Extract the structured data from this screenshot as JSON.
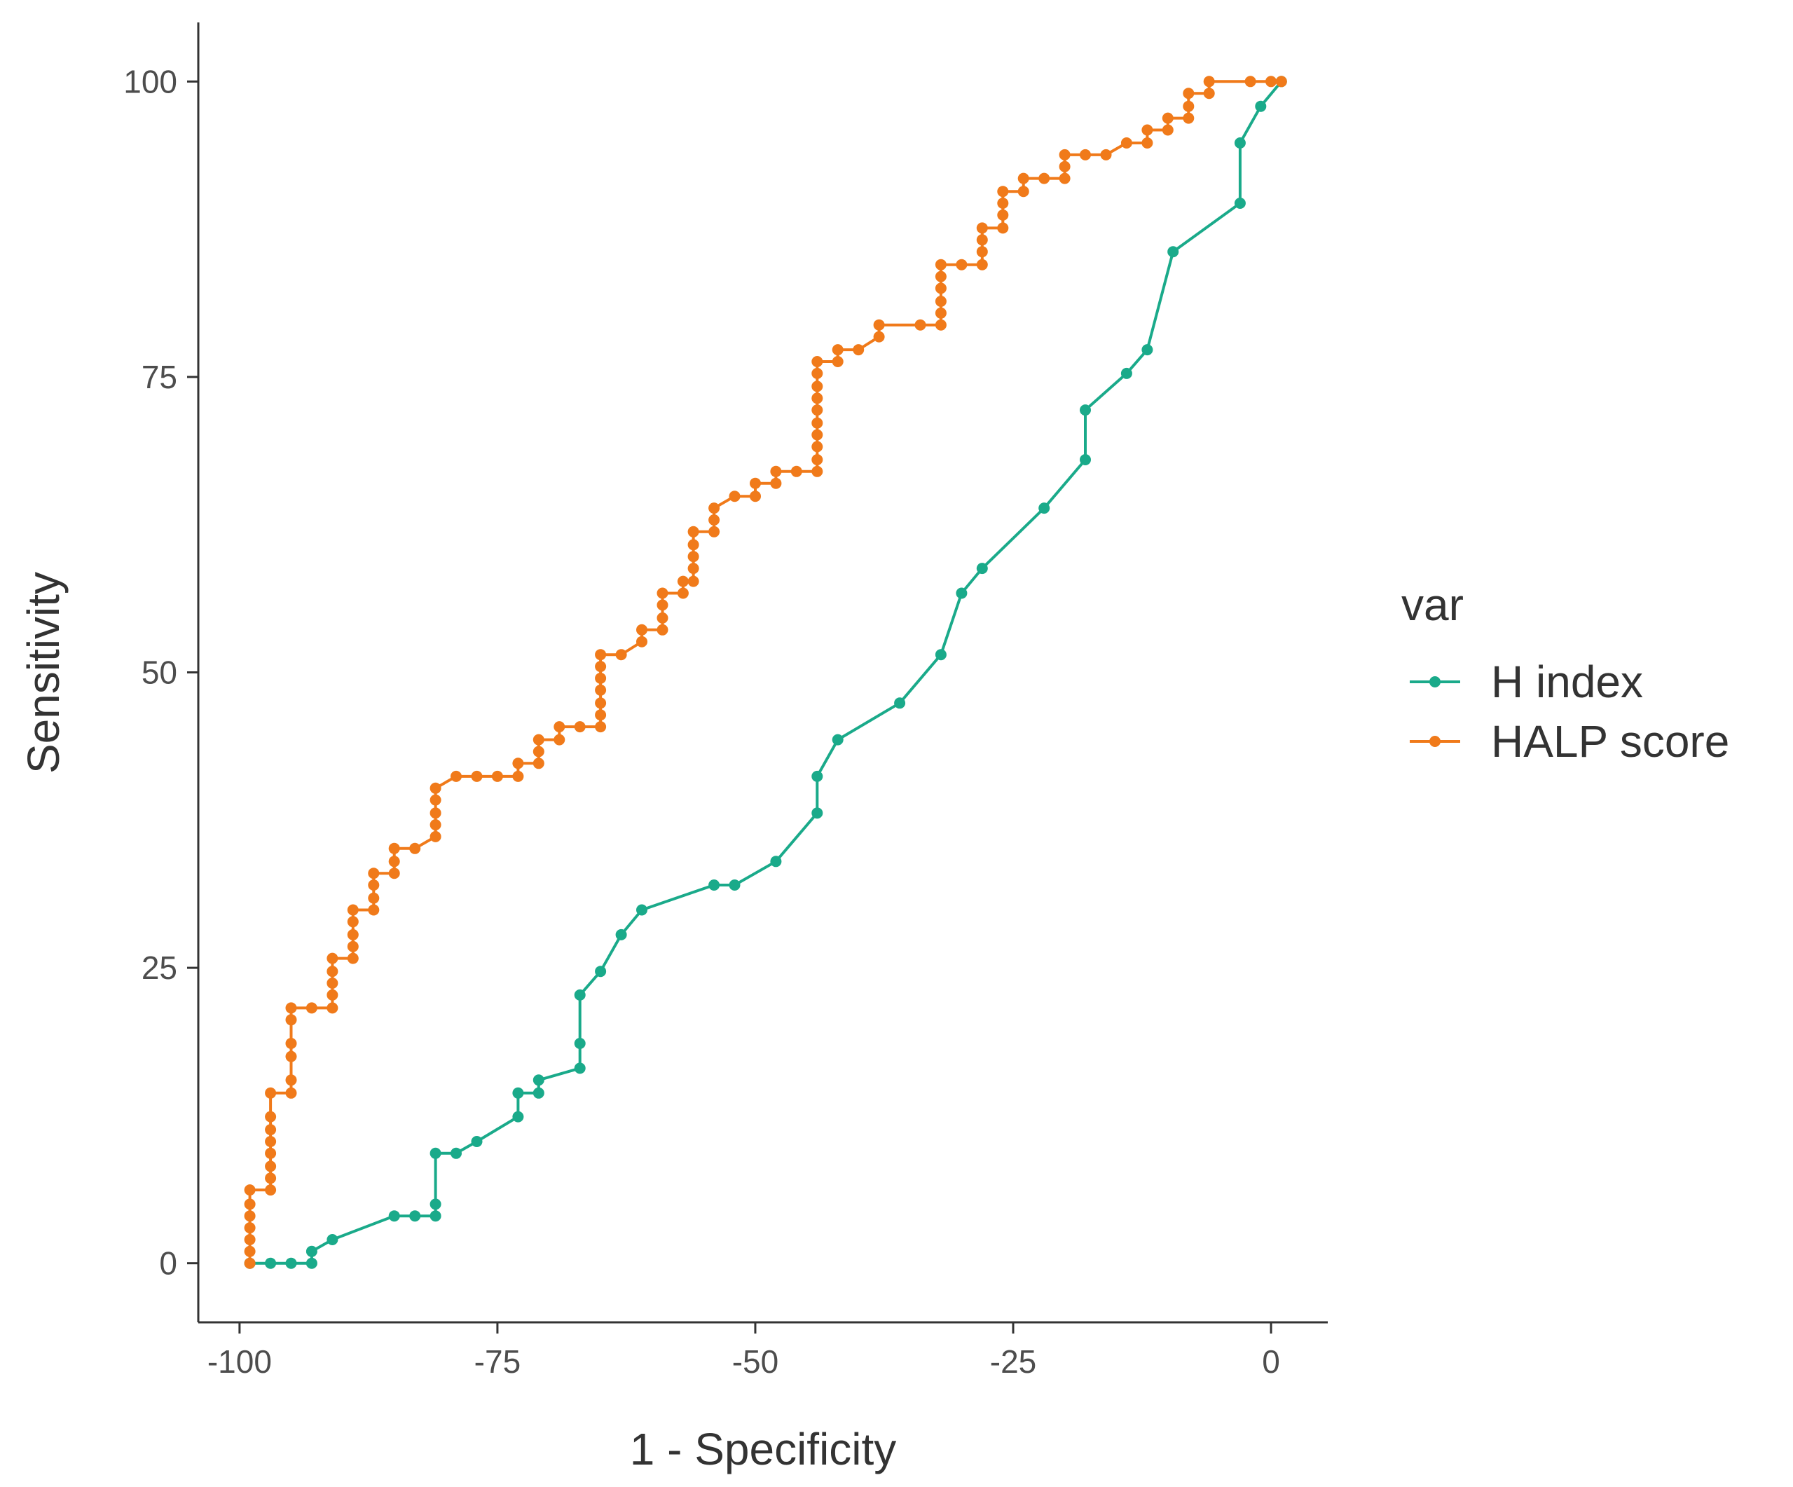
{
  "chart_data": {
    "type": "line",
    "title": "",
    "xlabel": "1 - Specificity",
    "ylabel": "Sensitivity",
    "xlim": [
      -104,
      5.5
    ],
    "ylim": [
      -5,
      105
    ],
    "x_ticks": [
      -100,
      -75,
      -50,
      -25,
      0
    ],
    "y_ticks": [
      0,
      25,
      50,
      75,
      100
    ],
    "x_tick_labels": [
      "-100",
      "-75",
      "-50",
      "-25",
      "0"
    ],
    "y_tick_labels": [
      "0",
      "25",
      "50",
      "75",
      "100"
    ],
    "grid": false,
    "legend": {
      "title": "var",
      "position": "right"
    },
    "series": [
      {
        "name": "H index",
        "color": "#1aaa8a",
        "points": [
          [
            -99,
            0
          ],
          [
            -97,
            0
          ],
          [
            -95,
            0
          ],
          [
            -93,
            0
          ],
          [
            -93,
            1
          ],
          [
            -91,
            2
          ],
          [
            -85,
            4
          ],
          [
            -83,
            4
          ],
          [
            -81,
            4
          ],
          [
            -81,
            5
          ],
          [
            -81,
            9.3
          ],
          [
            -79,
            9.3
          ],
          [
            -77,
            10.3
          ],
          [
            -73,
            12.4
          ],
          [
            -73,
            14.4
          ],
          [
            -71,
            14.4
          ],
          [
            -71,
            15.5
          ],
          [
            -67,
            16.5
          ],
          [
            -67,
            18.6
          ],
          [
            -67,
            22.7
          ],
          [
            -65,
            24.7
          ],
          [
            -63,
            27.8
          ],
          [
            -61,
            29.9
          ],
          [
            -54,
            32
          ],
          [
            -52,
            32
          ],
          [
            -48,
            34
          ],
          [
            -44,
            38.1
          ],
          [
            -44,
            41.2
          ],
          [
            -42,
            44.3
          ],
          [
            -36,
            47.4
          ],
          [
            -32,
            51.5
          ],
          [
            -30,
            56.7
          ],
          [
            -28,
            58.8
          ],
          [
            -22,
            63.9
          ],
          [
            -18,
            68
          ],
          [
            -18,
            72.2
          ],
          [
            -14,
            75.3
          ],
          [
            -12,
            77.3
          ],
          [
            -9.5,
            85.6
          ],
          [
            -3,
            89.7
          ],
          [
            -3,
            94.8
          ],
          [
            -1,
            97.9
          ],
          [
            1,
            100
          ]
        ]
      },
      {
        "name": "HALP score",
        "color": "#f07a1a",
        "points": [
          [
            -99,
            0
          ],
          [
            -99,
            1
          ],
          [
            -99,
            2
          ],
          [
            -99,
            3
          ],
          [
            -99,
            4
          ],
          [
            -99,
            5
          ],
          [
            -99,
            6.2
          ],
          [
            -97,
            6.2
          ],
          [
            -97,
            7.2
          ],
          [
            -97,
            8.2
          ],
          [
            -97,
            9.3
          ],
          [
            -97,
            10.3
          ],
          [
            -97,
            11.3
          ],
          [
            -97,
            12.4
          ],
          [
            -97,
            14.4
          ],
          [
            -95,
            14.4
          ],
          [
            -95,
            15.5
          ],
          [
            -95,
            17.5
          ],
          [
            -95,
            18.6
          ],
          [
            -95,
            20.6
          ],
          [
            -95,
            21.6
          ],
          [
            -93,
            21.6
          ],
          [
            -91,
            21.6
          ],
          [
            -91,
            22.7
          ],
          [
            -91,
            23.7
          ],
          [
            -91,
            24.7
          ],
          [
            -91,
            25.8
          ],
          [
            -89,
            25.8
          ],
          [
            -89,
            26.8
          ],
          [
            -89,
            27.8
          ],
          [
            -89,
            28.9
          ],
          [
            -89,
            29.9
          ],
          [
            -87,
            29.9
          ],
          [
            -87,
            30.9
          ],
          [
            -87,
            32
          ],
          [
            -87,
            33
          ],
          [
            -85,
            33
          ],
          [
            -85,
            34
          ],
          [
            -85,
            35.1
          ],
          [
            -83,
            35.1
          ],
          [
            -81,
            36.1
          ],
          [
            -81,
            37.1
          ],
          [
            -81,
            38.1
          ],
          [
            -81,
            39.2
          ],
          [
            -81,
            40.2
          ],
          [
            -79,
            41.2
          ],
          [
            -77,
            41.2
          ],
          [
            -75,
            41.2
          ],
          [
            -73,
            41.2
          ],
          [
            -73,
            42.3
          ],
          [
            -71,
            42.3
          ],
          [
            -71,
            43.3
          ],
          [
            -71,
            44.3
          ],
          [
            -69,
            44.3
          ],
          [
            -69,
            45.4
          ],
          [
            -67,
            45.4
          ],
          [
            -65,
            45.4
          ],
          [
            -65,
            46.4
          ],
          [
            -65,
            47.4
          ],
          [
            -65,
            48.5
          ],
          [
            -65,
            49.5
          ],
          [
            -65,
            50.5
          ],
          [
            -65,
            51.5
          ],
          [
            -63,
            51.5
          ],
          [
            -61,
            52.6
          ],
          [
            -61,
            53.6
          ],
          [
            -59,
            53.6
          ],
          [
            -59,
            54.6
          ],
          [
            -59,
            55.7
          ],
          [
            -59,
            56.7
          ],
          [
            -57,
            56.7
          ],
          [
            -57,
            57.7
          ],
          [
            -56,
            57.7
          ],
          [
            -56,
            58.8
          ],
          [
            -56,
            59.8
          ],
          [
            -56,
            60.8
          ],
          [
            -56,
            61.9
          ],
          [
            -54,
            61.9
          ],
          [
            -54,
            62.9
          ],
          [
            -54,
            63.9
          ],
          [
            -52,
            64.9
          ],
          [
            -50,
            64.9
          ],
          [
            -50,
            66
          ],
          [
            -48,
            66
          ],
          [
            -48,
            67
          ],
          [
            -46,
            67
          ],
          [
            -44,
            67
          ],
          [
            -44,
            68
          ],
          [
            -44,
            69.1
          ],
          [
            -44,
            70.1
          ],
          [
            -44,
            71.1
          ],
          [
            -44,
            72.2
          ],
          [
            -44,
            73.2
          ],
          [
            -44,
            74.2
          ],
          [
            -44,
            75.3
          ],
          [
            -44,
            76.3
          ],
          [
            -42,
            76.3
          ],
          [
            -42,
            77.3
          ],
          [
            -40,
            77.3
          ],
          [
            -38,
            78.4
          ],
          [
            -38,
            79.4
          ],
          [
            -34,
            79.4
          ],
          [
            -32,
            79.4
          ],
          [
            -32,
            80.4
          ],
          [
            -32,
            81.4
          ],
          [
            -32,
            82.5
          ],
          [
            -32,
            83.5
          ],
          [
            -32,
            84.5
          ],
          [
            -30,
            84.5
          ],
          [
            -28,
            84.5
          ],
          [
            -28,
            85.6
          ],
          [
            -28,
            86.6
          ],
          [
            -28,
            87.6
          ],
          [
            -26,
            87.6
          ],
          [
            -26,
            88.7
          ],
          [
            -26,
            89.7
          ],
          [
            -26,
            90.7
          ],
          [
            -24,
            90.7
          ],
          [
            -24,
            91.8
          ],
          [
            -22,
            91.8
          ],
          [
            -20,
            91.8
          ],
          [
            -20,
            92.8
          ],
          [
            -20,
            93.8
          ],
          [
            -18,
            93.8
          ],
          [
            -16,
            93.8
          ],
          [
            -14,
            94.8
          ],
          [
            -12,
            94.8
          ],
          [
            -12,
            95.9
          ],
          [
            -10,
            95.9
          ],
          [
            -10,
            96.9
          ],
          [
            -8,
            96.9
          ],
          [
            -8,
            97.9
          ],
          [
            -8,
            99
          ],
          [
            -6,
            99
          ],
          [
            -6,
            100
          ],
          [
            -2,
            100
          ],
          [
            0,
            100
          ],
          [
            1,
            100
          ]
        ]
      }
    ]
  }
}
